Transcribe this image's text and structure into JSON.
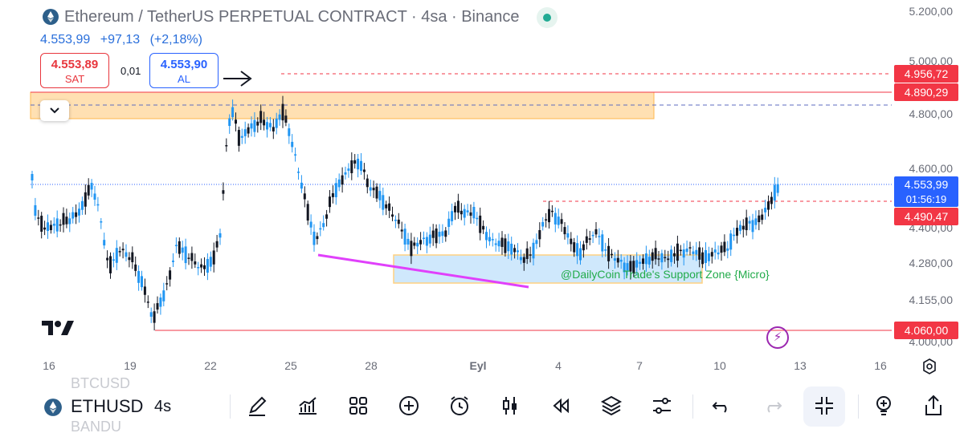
{
  "header": {
    "title": "Ethereum / TetherUS PERPETUAL CONTRACT · 4sa · Binance",
    "price": "4.553,99",
    "change": "+97,13",
    "change_pct": "(+2,18%)"
  },
  "trade": {
    "sell_price": "4.553,89",
    "sell_label": "SAT",
    "spread": "0,01",
    "buy_price": "4.553,90",
    "buy_label": "AL"
  },
  "price_axis": {
    "ticks": [
      "5.200,00",
      "5.000,00",
      "4.800,00",
      "4.600,00",
      "4.400,00",
      "4.280,00",
      "4.155,00",
      "4.000,00"
    ]
  },
  "price_tags": {
    "t1": "4.956,72",
    "t2": "4.890,29",
    "current": "4.553,99",
    "countdown": "01:56:19",
    "t3": "4.490,47",
    "t4": "4.060,00"
  },
  "date_axis": {
    "labels": [
      "16",
      "19",
      "22",
      "25",
      "28",
      "Eyl",
      "4",
      "7",
      "10",
      "13",
      "16"
    ]
  },
  "annotations": {
    "support_zone": "@DailyCoin Trade's Support Zone {Micro}"
  },
  "toolbar": {
    "symbol": "ETHUSD",
    "symbol_above": "BTCUSD",
    "symbol_below": "BANDU",
    "interval": "4s"
  },
  "colors": {
    "up": "#2196f3",
    "down": "#131722",
    "resistance_zone": "#ffe0b2",
    "support_zone": "#cfe8fc",
    "trendline": "#e040fb",
    "accent_red": "#f23645",
    "accent_blue": "#2962ff"
  }
}
